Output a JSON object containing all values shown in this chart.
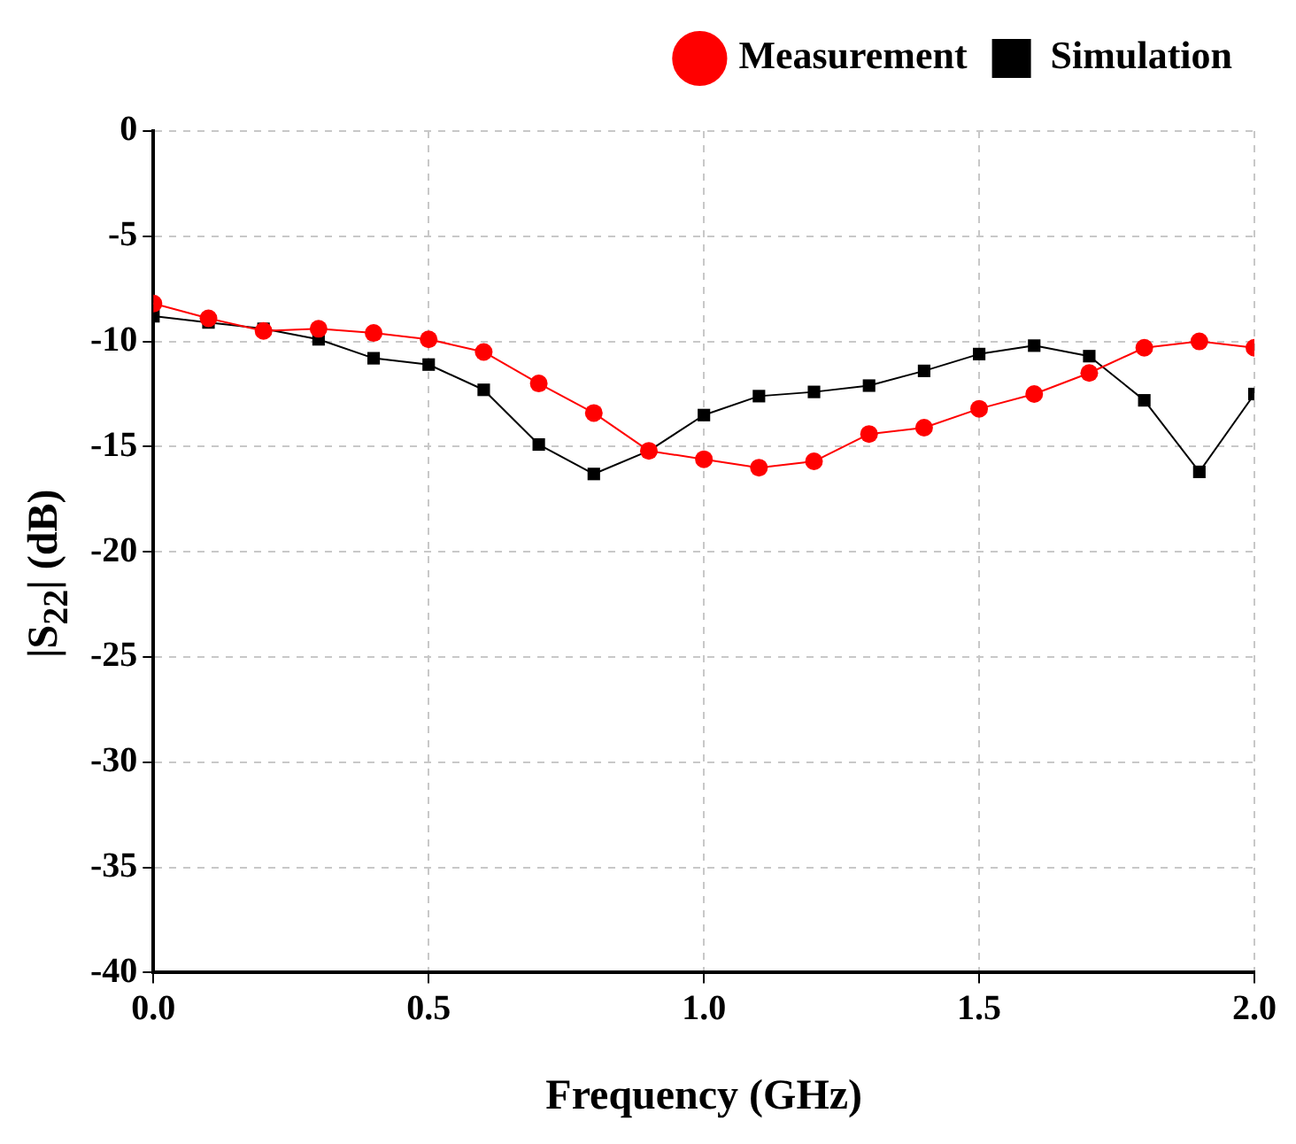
{
  "chart_data": {
    "type": "line",
    "xlabel": "Frequency (GHz)",
    "ylabel": "|S$_{22}$| (dB)",
    "x": [
      0,
      0.1,
      0.2,
      0.3,
      0.4,
      0.5,
      0.6,
      0.7,
      0.8,
      0.9,
      1.0,
      1.1,
      1.2,
      1.3,
      1.4,
      1.5,
      1.6,
      1.7,
      1.8,
      1.9,
      2.0
    ],
    "series": [
      {
        "name": "Simulation",
        "color": "#000000",
        "marker": "square",
        "values": [
          -8.8,
          -9.1,
          -9.4,
          -9.9,
          -10.8,
          -11.1,
          -12.3,
          -14.9,
          -16.3,
          -15.2,
          -13.5,
          -12.6,
          -12.4,
          -12.1,
          -11.4,
          -10.6,
          -10.2,
          -10.7,
          -12.8,
          -16.2,
          -12.5
        ]
      },
      {
        "name": "Measurement",
        "color": "#ff0000",
        "marker": "circle",
        "values": [
          -8.2,
          -8.9,
          -9.5,
          -9.4,
          -9.6,
          -9.9,
          -10.5,
          -12.0,
          -13.4,
          -15.2,
          -15.6,
          -16.0,
          -15.7,
          -14.4,
          -14.1,
          -13.2,
          -12.5,
          -11.5,
          -10.3,
          -10.0,
          -10.3
        ]
      }
    ],
    "xlim": [
      0,
      2
    ],
    "xticks": [
      {
        "value": 0,
        "label": "0.0"
      },
      0.5,
      {
        "value": 1,
        "label": "1.0"
      },
      1.5,
      {
        "value": 2,
        "label": "2.0"
      }
    ],
    "ylim": [
      -40,
      0
    ],
    "yticks": [
      -40,
      -35,
      -30,
      -25,
      -20,
      -15,
      -10,
      -5,
      0
    ],
    "grid": true,
    "legend": "top right",
    "line_style": "solid"
  }
}
